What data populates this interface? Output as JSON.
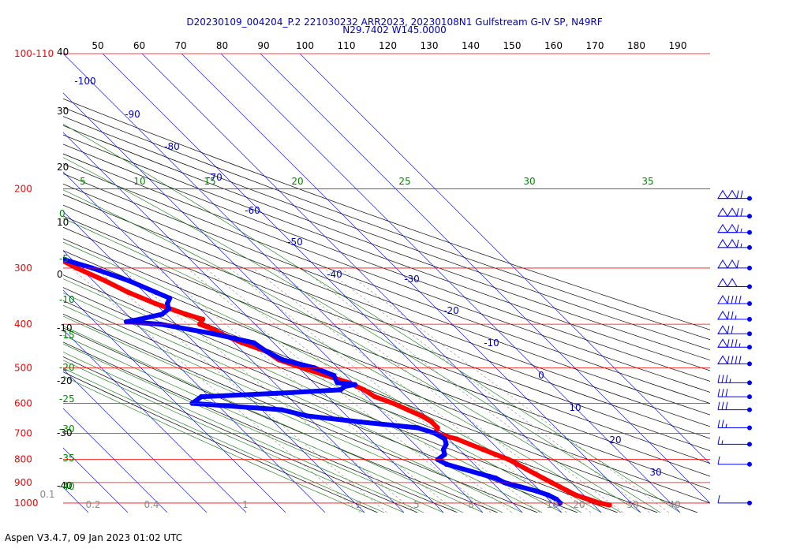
{
  "header": {
    "line1": "D20230109_004204_P.2 221030232 ARR2023, 20230108N1 Gulfstream G-IV SP, N49RF",
    "line2": "N29.7402 W145.0000"
  },
  "footer": {
    "text": "Aspen V3.4.7, 09 Jan 2023  01:02 UTC"
  },
  "chart_data": {
    "type": "line",
    "subtype": "skew-T log-P",
    "pressure_labels": [
      "100-110",
      "200",
      "300",
      "400",
      "500",
      "600",
      "700",
      "800",
      "900",
      "1000"
    ],
    "pressure_levels": [
      100,
      200,
      300,
      400,
      500,
      600,
      700,
      800,
      900,
      1000
    ],
    "top_temperature_ticks": [
      50,
      60,
      70,
      80,
      90,
      100,
      110,
      120,
      130,
      140,
      150,
      160,
      170,
      180,
      190
    ],
    "isotherm_labels": [
      {
        "text": "-100",
        "t": -100
      },
      {
        "text": "-90",
        "t": -90
      },
      {
        "text": "-80",
        "t": -80
      },
      {
        "text": "-70",
        "t": -70
      },
      {
        "text": "-60",
        "t": -60
      },
      {
        "text": "-50",
        "t": -50
      },
      {
        "text": "-40",
        "t": -40
      },
      {
        "text": "-30",
        "t": -30
      },
      {
        "text": "-20",
        "t": -20
      },
      {
        "text": "-10",
        "t": -10
      },
      {
        "text": "0",
        "t": 0
      },
      {
        "text": "10",
        "t": 10
      },
      {
        "text": "20",
        "t": 20
      },
      {
        "text": "30",
        "t": 30
      }
    ],
    "left_black_ticks": [
      "40",
      "30",
      "20",
      "10",
      "0",
      "-10",
      "-20",
      "-30",
      "-40"
    ],
    "left_green_ticks": [
      "0",
      "-5",
      "-10",
      "-15",
      "-20",
      "-25",
      "-30",
      "-35",
      "-40"
    ],
    "upper_green_labels": [
      "5",
      "10",
      "15",
      "20",
      "25",
      "30",
      "35"
    ],
    "mixing_ratio_labels": [
      "0.1",
      "0.2",
      "0.4",
      "1",
      "2",
      "5",
      "8",
      "10",
      "20",
      "30",
      "40"
    ],
    "series": [
      {
        "color": "#ff0000",
        "pressure": [
          186,
          190,
          200,
          210,
          215,
          230,
          250,
          280,
          300,
          320,
          340,
          360,
          380,
          390,
          400,
          410,
          420,
          440,
          460,
          480,
          500,
          520,
          540,
          560,
          580,
          600,
          620,
          640,
          660,
          680,
          700,
          720,
          740,
          760,
          780,
          800,
          820,
          840,
          860,
          880,
          900,
          920,
          940,
          960,
          980,
          1000,
          1010
        ],
        "temperature": [
          -62,
          -62,
          -61,
          -59,
          -59,
          -61,
          -58,
          -54,
          -51,
          -47,
          -44,
          -40,
          -35,
          -32,
          -34,
          -32,
          -31,
          -28,
          -24,
          -23,
          -19,
          -15,
          -11,
          -9,
          -8,
          -5,
          -3,
          -1,
          0,
          0,
          -2,
          2,
          4,
          6,
          8,
          10,
          11,
          12,
          13,
          14,
          15,
          16,
          17,
          18,
          20,
          22,
          24
        ]
      },
      {
        "color": "#0000ff",
        "pressure": [
          195,
          200,
          210,
          220,
          230,
          240,
          250,
          260,
          270,
          275,
          280,
          300,
          320,
          340,
          350,
          360,
          370,
          380,
          390,
          395,
          400,
          420,
          440,
          460,
          480,
          500,
          520,
          540,
          545,
          550,
          560,
          570,
          580,
          600,
          620,
          640,
          660,
          680,
          700,
          720,
          740,
          760,
          780,
          800,
          820,
          840,
          860,
          880,
          900,
          920,
          940,
          960,
          980,
          1000
        ],
        "temperature": [
          -90,
          -88,
          -84,
          -78,
          -75,
          -76,
          -77,
          -75,
          -70,
          -64,
          -55,
          -47,
          -41,
          -37,
          -35,
          -37,
          -38,
          -41,
          -48,
          -52,
          -44,
          -33,
          -25,
          -24,
          -22,
          -16,
          -13,
          -14,
          -10,
          -13,
          -15,
          -32,
          -52,
          -56,
          -35,
          -30,
          -18,
          -5,
          -2,
          -1,
          -2,
          -4,
          -5,
          -8,
          -7,
          -4,
          -1,
          2,
          3,
          6,
          9,
          11,
          12,
          12
        ]
      }
    ],
    "wind_barbs": [
      {
        "p": 210,
        "speed": 120
      },
      {
        "p": 230,
        "speed": 120
      },
      {
        "p": 250,
        "speed": 115
      },
      {
        "p": 270,
        "speed": 115
      },
      {
        "p": 300,
        "speed": 110
      },
      {
        "p": 330,
        "speed": 100
      },
      {
        "p": 360,
        "speed": 90
      },
      {
        "p": 390,
        "speed": 75
      },
      {
        "p": 420,
        "speed": 70
      },
      {
        "p": 450,
        "speed": 85
      },
      {
        "p": 490,
        "speed": 90
      },
      {
        "p": 540,
        "speed": 35
      },
      {
        "p": 580,
        "speed": 30
      },
      {
        "p": 620,
        "speed": 30
      },
      {
        "p": 680,
        "speed": 25
      },
      {
        "p": 740,
        "speed": 15
      },
      {
        "p": 820,
        "speed": 10
      },
      {
        "p": 1000,
        "speed": 10
      }
    ]
  }
}
